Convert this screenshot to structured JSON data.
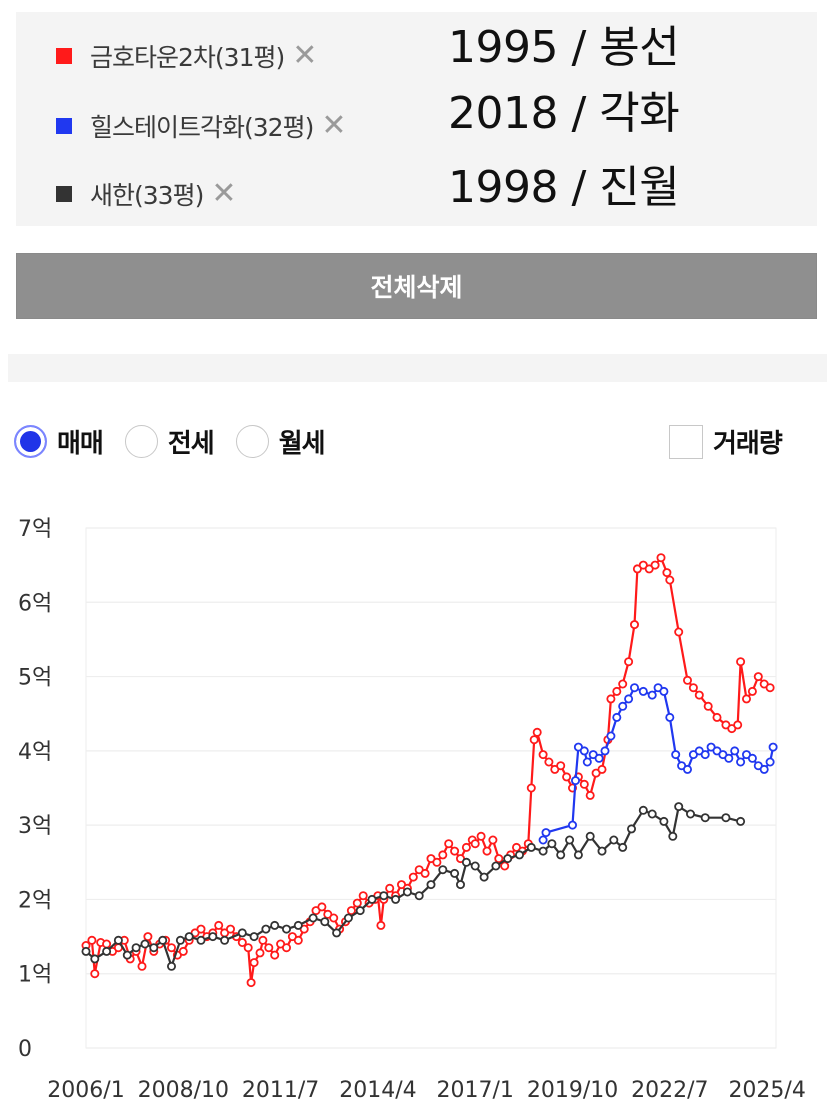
{
  "compare_list": [
    {
      "name": "금호타운2차(31평)",
      "color": "#ff1a1a",
      "info": "1995 / 봉선"
    },
    {
      "name": "힐스테이트각화(32평)",
      "color": "#2038f0",
      "info": "2018 / 각화"
    },
    {
      "name": "새한(33평)",
      "color": "#333333",
      "info": "1998 / 진월"
    }
  ],
  "remove_glyph": "✕",
  "delete_all_label": "전체삭제",
  "radios": [
    {
      "label": "매매",
      "checked": true
    },
    {
      "label": "전세",
      "checked": false
    },
    {
      "label": "월세",
      "checked": false
    }
  ],
  "volume_label": "거래량",
  "chart_data": {
    "type": "line",
    "x_unit": "year-month",
    "x_ticks": [
      "2006/1",
      "2008/10",
      "2011/7",
      "2014/4",
      "2017/1",
      "2019/10",
      "2022/7",
      "2025/4"
    ],
    "y_ticks": [
      "0",
      "1억",
      "2억",
      "3억",
      "4억",
      "5억",
      "6억",
      "7억"
    ],
    "ylim": [
      0,
      7
    ],
    "xlim": [
      "2006/1",
      "2025/7"
    ],
    "grid": true,
    "series": [
      {
        "name": "금호타운2차(31평)",
        "color": "#ff1a1a",
        "points": [
          [
            "2006/1",
            1.38
          ],
          [
            "2006/3",
            1.45
          ],
          [
            "2006/4",
            1.0
          ],
          [
            "2006/6",
            1.42
          ],
          [
            "2006/8",
            1.4
          ],
          [
            "2006/10",
            1.3
          ],
          [
            "2006/12",
            1.35
          ],
          [
            "2007/2",
            1.45
          ],
          [
            "2007/4",
            1.2
          ],
          [
            "2007/6",
            1.3
          ],
          [
            "2007/8",
            1.1
          ],
          [
            "2007/10",
            1.5
          ],
          [
            "2007/12",
            1.3
          ],
          [
            "2008/2",
            1.4
          ],
          [
            "2008/4",
            1.45
          ],
          [
            "2008/6",
            1.35
          ],
          [
            "2008/8",
            1.25
          ],
          [
            "2008/10",
            1.3
          ],
          [
            "2008/12",
            1.45
          ],
          [
            "2009/2",
            1.55
          ],
          [
            "2009/4",
            1.6
          ],
          [
            "2009/6",
            1.5
          ],
          [
            "2009/8",
            1.55
          ],
          [
            "2009/10",
            1.65
          ],
          [
            "2009/12",
            1.55
          ],
          [
            "2010/2",
            1.6
          ],
          [
            "2010/4",
            1.5
          ],
          [
            "2010/6",
            1.42
          ],
          [
            "2010/8",
            1.35
          ],
          [
            "2010/9",
            0.88
          ],
          [
            "2010/10",
            1.15
          ],
          [
            "2010/12",
            1.28
          ],
          [
            "2011/1",
            1.45
          ],
          [
            "2011/3",
            1.35
          ],
          [
            "2011/5",
            1.25
          ],
          [
            "2011/7",
            1.4
          ],
          [
            "2011/9",
            1.35
          ],
          [
            "2011/11",
            1.5
          ],
          [
            "2012/1",
            1.45
          ],
          [
            "2012/3",
            1.6
          ],
          [
            "2012/5",
            1.7
          ],
          [
            "2012/7",
            1.85
          ],
          [
            "2012/9",
            1.9
          ],
          [
            "2012/11",
            1.8
          ],
          [
            "2013/1",
            1.75
          ],
          [
            "2013/3",
            1.6
          ],
          [
            "2013/5",
            1.7
          ],
          [
            "2013/7",
            1.85
          ],
          [
            "2013/9",
            1.95
          ],
          [
            "2013/11",
            2.05
          ],
          [
            "2014/1",
            1.95
          ],
          [
            "2014/3",
            2.0
          ],
          [
            "2014/4",
            2.05
          ],
          [
            "2014/5",
            1.65
          ],
          [
            "2014/6",
            2.0
          ],
          [
            "2014/8",
            2.15
          ],
          [
            "2014/10",
            2.05
          ],
          [
            "2014/12",
            2.2
          ],
          [
            "2015/2",
            2.15
          ],
          [
            "2015/4",
            2.3
          ],
          [
            "2015/6",
            2.4
          ],
          [
            "2015/8",
            2.35
          ],
          [
            "2015/10",
            2.55
          ],
          [
            "2015/12",
            2.5
          ],
          [
            "2016/2",
            2.6
          ],
          [
            "2016/4",
            2.75
          ],
          [
            "2016/6",
            2.65
          ],
          [
            "2016/8",
            2.55
          ],
          [
            "2016/10",
            2.7
          ],
          [
            "2016/12",
            2.8
          ],
          [
            "2017/1",
            2.75
          ],
          [
            "2017/3",
            2.85
          ],
          [
            "2017/5",
            2.65
          ],
          [
            "2017/7",
            2.8
          ],
          [
            "2017/9",
            2.55
          ],
          [
            "2017/11",
            2.45
          ],
          [
            "2018/1",
            2.6
          ],
          [
            "2018/3",
            2.7
          ],
          [
            "2018/5",
            2.65
          ],
          [
            "2018/7",
            2.75
          ],
          [
            "2018/8",
            3.5
          ],
          [
            "2018/9",
            4.15
          ],
          [
            "2018/10",
            4.25
          ],
          [
            "2018/12",
            3.95
          ],
          [
            "2019/2",
            3.85
          ],
          [
            "2019/4",
            3.75
          ],
          [
            "2019/6",
            3.8
          ],
          [
            "2019/8",
            3.65
          ],
          [
            "2019/10",
            3.5
          ],
          [
            "2019/12",
            3.65
          ],
          [
            "2020/2",
            3.55
          ],
          [
            "2020/4",
            3.4
          ],
          [
            "2020/6",
            3.7
          ],
          [
            "2020/8",
            3.75
          ],
          [
            "2020/10",
            4.15
          ],
          [
            "2020/11",
            4.7
          ],
          [
            "2021/1",
            4.8
          ],
          [
            "2021/3",
            4.9
          ],
          [
            "2021/5",
            5.2
          ],
          [
            "2021/7",
            5.7
          ],
          [
            "2021/8",
            6.45
          ],
          [
            "2021/10",
            6.5
          ],
          [
            "2021/12",
            6.45
          ],
          [
            "2022/2",
            6.5
          ],
          [
            "2022/4",
            6.6
          ],
          [
            "2022/6",
            6.4
          ],
          [
            "2022/7",
            6.3
          ],
          [
            "2022/10",
            5.6
          ],
          [
            "2023/1",
            4.95
          ],
          [
            "2023/3",
            4.85
          ],
          [
            "2023/5",
            4.75
          ],
          [
            "2023/8",
            4.6
          ],
          [
            "2023/11",
            4.45
          ],
          [
            "2024/2",
            4.35
          ],
          [
            "2024/4",
            4.3
          ],
          [
            "2024/6",
            4.35
          ],
          [
            "2024/7",
            5.2
          ],
          [
            "2024/9",
            4.7
          ],
          [
            "2024/11",
            4.8
          ],
          [
            "2025/1",
            5.0
          ],
          [
            "2025/3",
            4.9
          ],
          [
            "2025/5",
            4.85
          ]
        ]
      },
      {
        "name": "힐스테이트각화(32평)",
        "color": "#2038f0",
        "points": [
          [
            "2018/12",
            2.8
          ],
          [
            "2019/1",
            2.9
          ],
          [
            "2019/10",
            3.0
          ],
          [
            "2019/11",
            3.6
          ],
          [
            "2019/12",
            4.05
          ],
          [
            "2020/2",
            4.0
          ],
          [
            "2020/3",
            3.85
          ],
          [
            "2020/5",
            3.95
          ],
          [
            "2020/7",
            3.9
          ],
          [
            "2020/9",
            4.0
          ],
          [
            "2020/11",
            4.2
          ],
          [
            "2021/1",
            4.45
          ],
          [
            "2021/3",
            4.6
          ],
          [
            "2021/5",
            4.7
          ],
          [
            "2021/7",
            4.85
          ],
          [
            "2021/10",
            4.8
          ],
          [
            "2022/1",
            4.75
          ],
          [
            "2022/3",
            4.85
          ],
          [
            "2022/5",
            4.8
          ],
          [
            "2022/7",
            4.45
          ],
          [
            "2022/9",
            3.95
          ],
          [
            "2022/11",
            3.8
          ],
          [
            "2023/1",
            3.75
          ],
          [
            "2023/3",
            3.95
          ],
          [
            "2023/5",
            4.0
          ],
          [
            "2023/7",
            3.95
          ],
          [
            "2023/9",
            4.05
          ],
          [
            "2023/11",
            4.0
          ],
          [
            "2024/1",
            3.95
          ],
          [
            "2024/3",
            3.9
          ],
          [
            "2024/5",
            4.0
          ],
          [
            "2024/7",
            3.85
          ],
          [
            "2024/9",
            3.95
          ],
          [
            "2024/11",
            3.9
          ],
          [
            "2025/1",
            3.8
          ],
          [
            "2025/3",
            3.75
          ],
          [
            "2025/5",
            3.85
          ],
          [
            "2025/6",
            4.05
          ]
        ]
      },
      {
        "name": "새한(33평)",
        "color": "#333333",
        "points": [
          [
            "2006/1",
            1.3
          ],
          [
            "2006/4",
            1.2
          ],
          [
            "2006/8",
            1.3
          ],
          [
            "2006/12",
            1.45
          ],
          [
            "2007/3",
            1.25
          ],
          [
            "2007/6",
            1.35
          ],
          [
            "2007/9",
            1.4
          ],
          [
            "2007/12",
            1.35
          ],
          [
            "2008/3",
            1.45
          ],
          [
            "2008/6",
            1.1
          ],
          [
            "2008/9",
            1.45
          ],
          [
            "2008/12",
            1.5
          ],
          [
            "2009/4",
            1.45
          ],
          [
            "2009/8",
            1.5
          ],
          [
            "2009/12",
            1.45
          ],
          [
            "2010/6",
            1.55
          ],
          [
            "2010/10",
            1.5
          ],
          [
            "2011/2",
            1.6
          ],
          [
            "2011/5",
            1.65
          ],
          [
            "2011/9",
            1.6
          ],
          [
            "2012/1",
            1.65
          ],
          [
            "2012/6",
            1.75
          ],
          [
            "2012/10",
            1.7
          ],
          [
            "2013/2",
            1.55
          ],
          [
            "2013/6",
            1.75
          ],
          [
            "2013/10",
            1.85
          ],
          [
            "2014/2",
            2.0
          ],
          [
            "2014/6",
            2.05
          ],
          [
            "2014/10",
            2.0
          ],
          [
            "2015/2",
            2.1
          ],
          [
            "2015/6",
            2.05
          ],
          [
            "2015/10",
            2.2
          ],
          [
            "2016/2",
            2.4
          ],
          [
            "2016/6",
            2.35
          ],
          [
            "2016/8",
            2.2
          ],
          [
            "2016/10",
            2.5
          ],
          [
            "2017/1",
            2.45
          ],
          [
            "2017/4",
            2.3
          ],
          [
            "2017/8",
            2.45
          ],
          [
            "2017/12",
            2.55
          ],
          [
            "2018/4",
            2.6
          ],
          [
            "2018/8",
            2.7
          ],
          [
            "2018/12",
            2.65
          ],
          [
            "2019/3",
            2.75
          ],
          [
            "2019/6",
            2.6
          ],
          [
            "2019/9",
            2.8
          ],
          [
            "2019/12",
            2.6
          ],
          [
            "2020/4",
            2.85
          ],
          [
            "2020/8",
            2.65
          ],
          [
            "2020/12",
            2.8
          ],
          [
            "2021/3",
            2.7
          ],
          [
            "2021/6",
            2.95
          ],
          [
            "2021/10",
            3.2
          ],
          [
            "2022/1",
            3.15
          ],
          [
            "2022/5",
            3.05
          ],
          [
            "2022/8",
            2.85
          ],
          [
            "2022/10",
            3.25
          ],
          [
            "2023/2",
            3.15
          ],
          [
            "2023/7",
            3.1
          ],
          [
            "2024/2",
            3.1
          ],
          [
            "2024/7",
            3.05
          ]
        ]
      }
    ]
  }
}
